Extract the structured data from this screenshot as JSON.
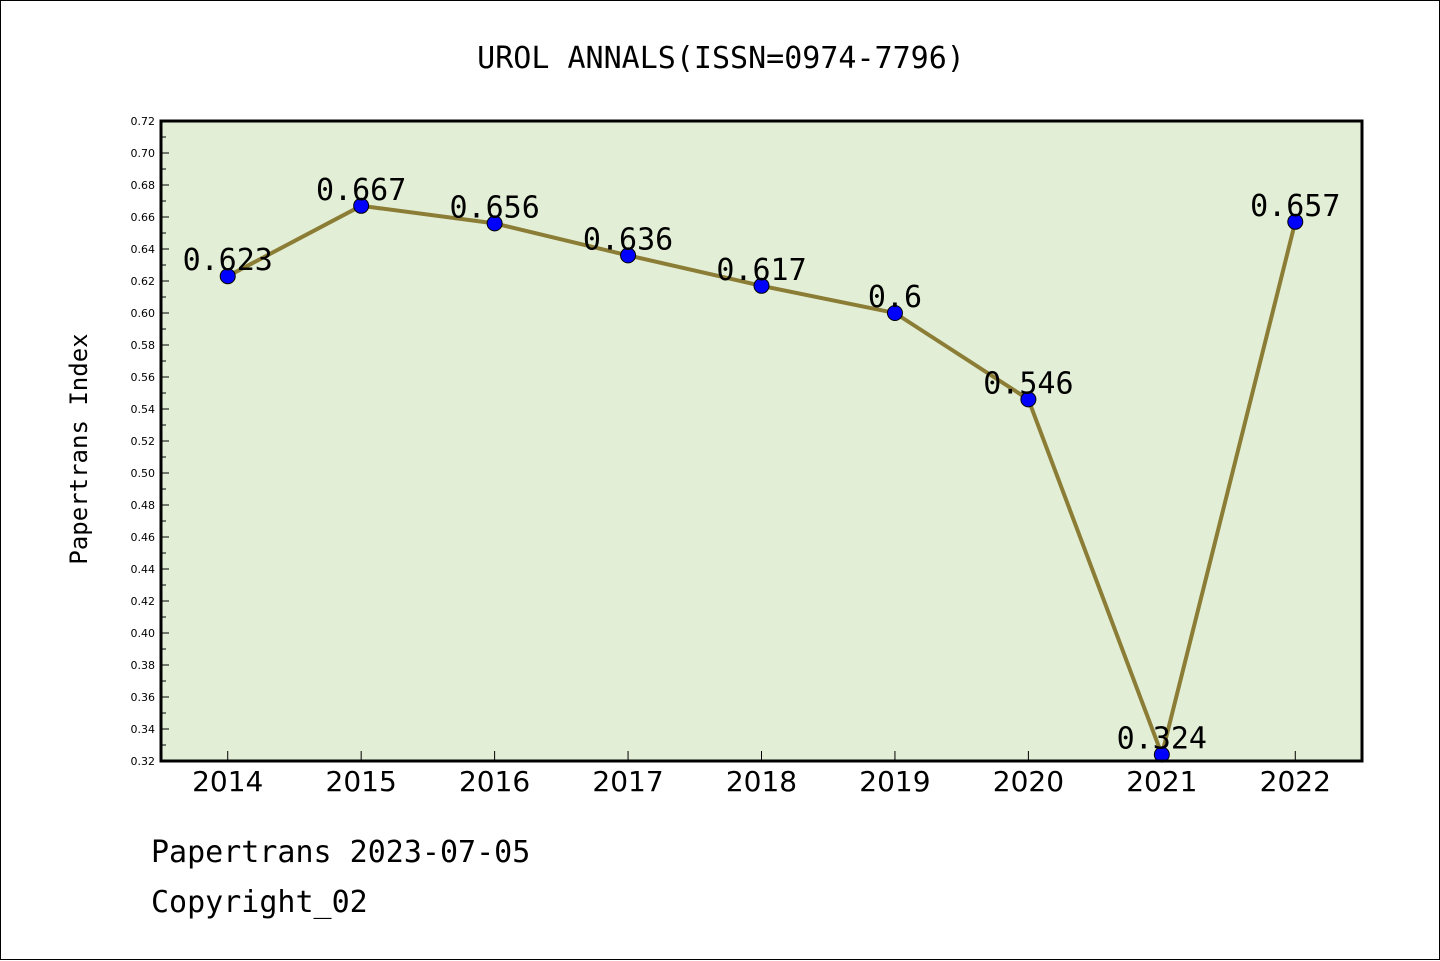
{
  "chart_data": {
    "type": "line",
    "title": "UROL ANNALS(ISSN=0974-7796)",
    "xlabel": "",
    "ylabel": "Papertrans Index",
    "categories": [
      "2014",
      "2015",
      "2016",
      "2017",
      "2018",
      "2019",
      "2020",
      "2021",
      "2022"
    ],
    "series": [
      {
        "values": [
          0.623,
          0.667,
          0.656,
          0.636,
          0.617,
          0.6,
          0.546,
          0.324,
          0.657
        ],
        "labels": [
          "0.623",
          "0.667",
          "0.656",
          "0.636",
          "0.617",
          "0.6",
          "0.546",
          "0.324",
          "0.657"
        ]
      }
    ],
    "ylim": [
      0.32,
      0.72
    ],
    "yticks": [
      "0.32",
      "0.34",
      "0.36",
      "0.38",
      "0.40",
      "0.42",
      "0.44",
      "0.46",
      "0.48",
      "0.50",
      "0.52",
      "0.54",
      "0.56",
      "0.58",
      "0.60",
      "0.62",
      "0.64",
      "0.66",
      "0.68",
      "0.70",
      "0.72"
    ],
    "grid": false,
    "legend": "none"
  },
  "footer": {
    "line1": "Papertrans 2023-07-05",
    "line2": "Copyright_02"
  },
  "colors": {
    "plot_background": "#e2efd6",
    "line": "#8b7d35",
    "marker": "#0000ff",
    "border": "#000000"
  }
}
